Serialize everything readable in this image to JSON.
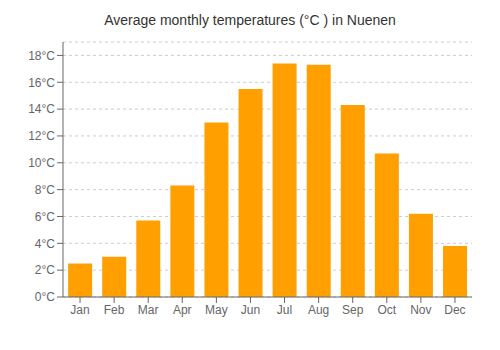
{
  "chart_data": {
    "type": "bar",
    "title": "Average monthly temperatures (°C ) in Nuenen",
    "categories": [
      "Jan",
      "Feb",
      "Mar",
      "Apr",
      "May",
      "Jun",
      "Jul",
      "Aug",
      "Sep",
      "Oct",
      "Nov",
      "Dec"
    ],
    "values": [
      2.5,
      3.0,
      5.7,
      8.3,
      13.0,
      15.5,
      17.4,
      17.3,
      14.3,
      10.7,
      6.2,
      3.8
    ],
    "color": "#FFA000",
    "ylim": [
      0,
      19
    ],
    "yticks": [
      {
        "value": 0,
        "label": "0°C"
      },
      {
        "value": 2,
        "label": "2°C"
      },
      {
        "value": 4,
        "label": "4°C"
      },
      {
        "value": 6,
        "label": "6°C"
      },
      {
        "value": 8,
        "label": "8°C"
      },
      {
        "value": 10,
        "label": "10°C"
      },
      {
        "value": 12,
        "label": "12°C"
      },
      {
        "value": 14,
        "label": "14°C"
      },
      {
        "value": 16,
        "label": "16°C"
      },
      {
        "value": 18,
        "label": "18°C"
      }
    ],
    "grid": true
  }
}
